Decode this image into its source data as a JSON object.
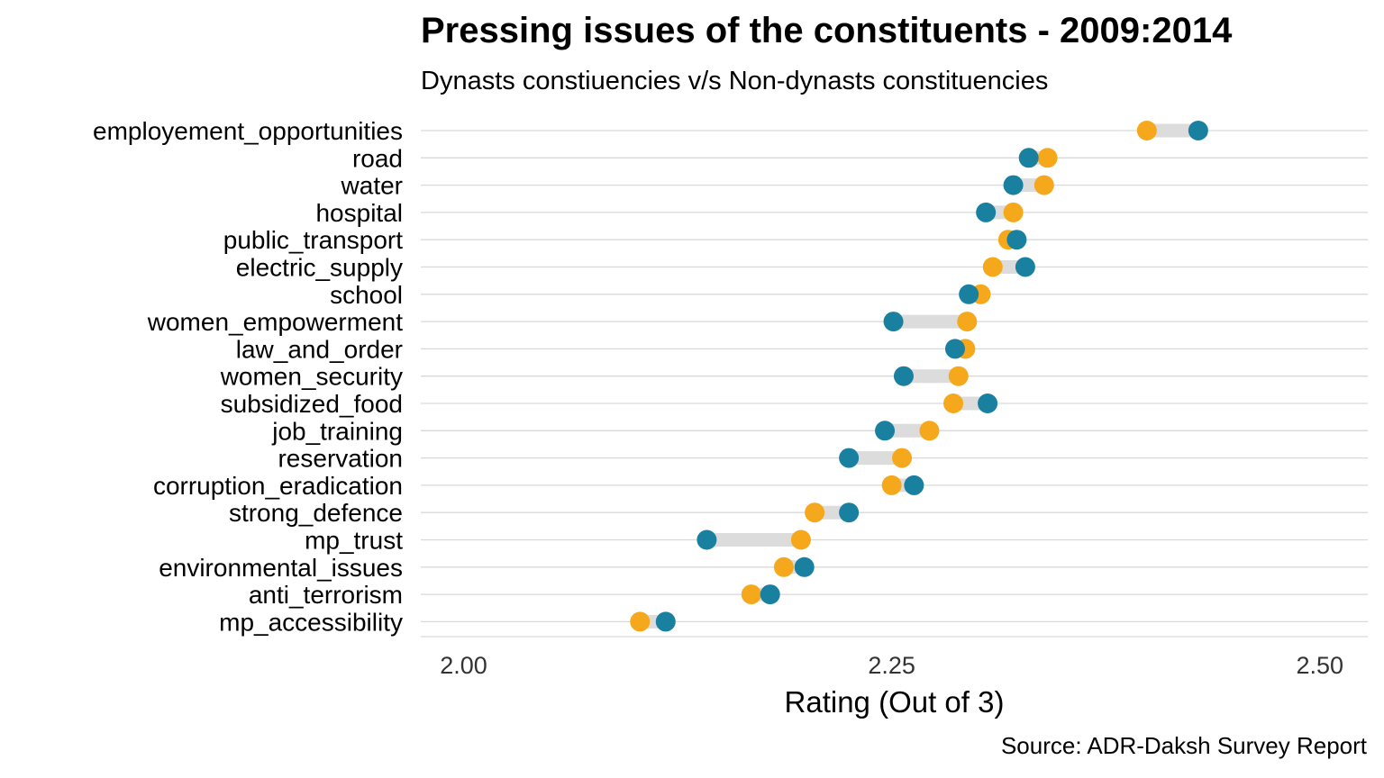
{
  "chart_data": {
    "type": "dumbbell",
    "title": "Pressing issues of the constituents - 2009:2014",
    "subtitle": "Dynasts constiuencies v/s Non-dynasts constituencies",
    "caption": "Source: ADR-Daksh Survey Report",
    "xlabel": "Rating (Out of 3)",
    "ylabel": "",
    "xlim": [
      1.975,
      2.528
    ],
    "x_ticks": [
      2.0,
      2.25,
      2.5
    ],
    "x_tick_labels": [
      "2.00",
      "2.25",
      "2.50"
    ],
    "grid": "horizontal",
    "legend": "none",
    "categories": [
      "employement_opportunities",
      "road",
      "water",
      "hospital",
      "public_transport",
      "electric_supply",
      "school",
      "women_empowerment",
      "law_and_order",
      "women_security",
      "subsidized_food",
      "job_training",
      "reservation",
      "corruption_eradication",
      "strong_defence",
      "mp_trust",
      "environmental_issues",
      "anti_terrorism",
      "mp_accessibility"
    ],
    "series": [
      {
        "color": "#F5A81C",
        "values": [
          2.399,
          2.341,
          2.339,
          2.321,
          2.318,
          2.309,
          2.302,
          2.294,
          2.293,
          2.289,
          2.286,
          2.272,
          2.256,
          2.25,
          2.205,
          2.197,
          2.187,
          2.168,
          2.103
        ]
      },
      {
        "color": "#1A80A0",
        "values": [
          2.429,
          2.33,
          2.321,
          2.305,
          2.323,
          2.328,
          2.295,
          2.251,
          2.287,
          2.257,
          2.306,
          2.246,
          2.225,
          2.263,
          2.225,
          2.142,
          2.199,
          2.179,
          2.118
        ]
      }
    ],
    "connector_color": "#DCDCDC",
    "gridline_color": "#D9D9D9"
  }
}
